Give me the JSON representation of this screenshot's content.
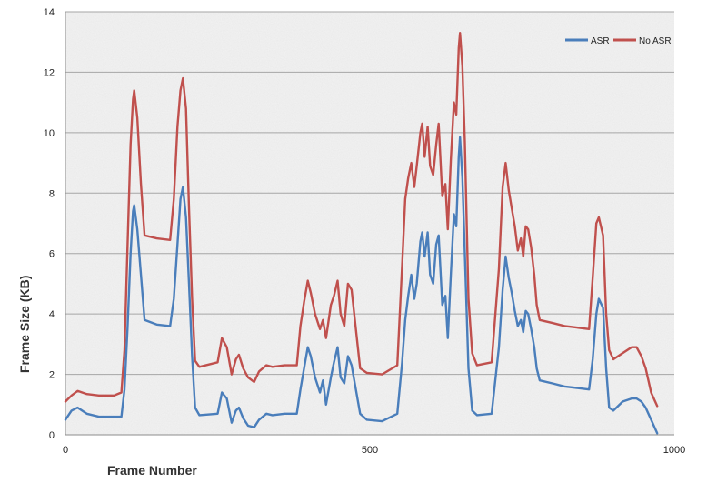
{
  "chart_data": {
    "type": "line",
    "title": "",
    "xlabel": "Frame Number",
    "ylabel": "Frame Size (KB)",
    "xlim": [
      0,
      1000
    ],
    "ylim": [
      0,
      14
    ],
    "xticks": [
      0,
      500,
      1000
    ],
    "xtick_labels": [
      "0",
      "500",
      "1000"
    ],
    "yticks": [
      0,
      2,
      4,
      6,
      8,
      10,
      12,
      14
    ],
    "ytick_labels": [
      "0",
      "2",
      "4",
      "6",
      "8",
      "10",
      "12",
      "14"
    ],
    "grid": "horizontal",
    "legend_position": "top-right",
    "series": [
      {
        "name": "ASR",
        "color": "#4a7ebb",
        "points": [
          [
            0,
            0.5
          ],
          [
            10,
            0.8
          ],
          [
            20,
            0.9
          ],
          [
            35,
            0.7
          ],
          [
            55,
            0.6
          ],
          [
            80,
            0.6
          ],
          [
            92,
            0.6
          ],
          [
            97,
            1.5
          ],
          [
            102,
            3.5
          ],
          [
            107,
            6.0
          ],
          [
            111,
            7.4
          ],
          [
            113,
            7.6
          ],
          [
            118,
            6.8
          ],
          [
            124,
            5.3
          ],
          [
            130,
            3.8
          ],
          [
            150,
            3.65
          ],
          [
            172,
            3.6
          ],
          [
            178,
            4.5
          ],
          [
            184,
            6.3
          ],
          [
            189,
            7.8
          ],
          [
            193,
            8.2
          ],
          [
            198,
            7.2
          ],
          [
            203,
            5.0
          ],
          [
            208,
            2.6
          ],
          [
            213,
            0.9
          ],
          [
            220,
            0.65
          ],
          [
            250,
            0.7
          ],
          [
            257,
            1.4
          ],
          [
            265,
            1.2
          ],
          [
            273,
            0.4
          ],
          [
            280,
            0.8
          ],
          [
            285,
            0.9
          ],
          [
            292,
            0.55
          ],
          [
            300,
            0.3
          ],
          [
            310,
            0.25
          ],
          [
            318,
            0.5
          ],
          [
            330,
            0.7
          ],
          [
            340,
            0.65
          ],
          [
            360,
            0.7
          ],
          [
            380,
            0.7
          ],
          [
            386,
            1.5
          ],
          [
            392,
            2.2
          ],
          [
            398,
            2.9
          ],
          [
            403,
            2.6
          ],
          [
            410,
            1.9
          ],
          [
            418,
            1.4
          ],
          [
            423,
            1.8
          ],
          [
            428,
            1.0
          ],
          [
            436,
            1.9
          ],
          [
            441,
            2.4
          ],
          [
            447,
            2.9
          ],
          [
            452,
            1.9
          ],
          [
            458,
            1.7
          ],
          [
            464,
            2.6
          ],
          [
            470,
            2.3
          ],
          [
            477,
            1.5
          ],
          [
            484,
            0.7
          ],
          [
            495,
            0.5
          ],
          [
            520,
            0.45
          ],
          [
            545,
            0.7
          ],
          [
            553,
            2.4
          ],
          [
            558,
            3.8
          ],
          [
            563,
            4.6
          ],
          [
            568,
            5.3
          ],
          [
            573,
            4.5
          ],
          [
            577,
            5.0
          ],
          [
            583,
            6.4
          ],
          [
            586,
            6.7
          ],
          [
            590,
            5.9
          ],
          [
            595,
            6.7
          ],
          [
            599,
            5.3
          ],
          [
            604,
            5.0
          ],
          [
            609,
            6.3
          ],
          [
            613,
            6.6
          ],
          [
            619,
            4.3
          ],
          [
            624,
            4.6
          ],
          [
            628,
            3.2
          ],
          [
            633,
            5.3
          ],
          [
            638,
            7.3
          ],
          [
            642,
            6.9
          ],
          [
            646,
            9.2
          ],
          [
            648,
            9.85
          ],
          [
            652,
            8.5
          ],
          [
            656,
            6.0
          ],
          [
            662,
            2.2
          ],
          [
            668,
            0.8
          ],
          [
            676,
            0.65
          ],
          [
            700,
            0.7
          ],
          [
            712,
            2.9
          ],
          [
            718,
            4.8
          ],
          [
            723,
            5.9
          ],
          [
            728,
            5.2
          ],
          [
            733,
            4.7
          ],
          [
            738,
            4.1
          ],
          [
            743,
            3.6
          ],
          [
            748,
            3.8
          ],
          [
            752,
            3.4
          ],
          [
            756,
            4.1
          ],
          [
            760,
            4.0
          ],
          [
            765,
            3.5
          ],
          [
            770,
            2.9
          ],
          [
            774,
            2.2
          ],
          [
            779,
            1.8
          ],
          [
            800,
            1.7
          ],
          [
            820,
            1.6
          ],
          [
            840,
            1.55
          ],
          [
            860,
            1.5
          ],
          [
            866,
            2.5
          ],
          [
            872,
            4.0
          ],
          [
            876,
            4.5
          ],
          [
            883,
            4.2
          ],
          [
            888,
            2.2
          ],
          [
            893,
            0.9
          ],
          [
            900,
            0.8
          ],
          [
            915,
            1.1
          ],
          [
            930,
            1.2
          ],
          [
            938,
            1.2
          ],
          [
            946,
            1.1
          ],
          [
            953,
            0.9
          ],
          [
            962,
            0.5
          ],
          [
            972,
            0.05
          ]
        ]
      },
      {
        "name": "No ASR",
        "color": "#c0504d",
        "points": [
          [
            0,
            1.1
          ],
          [
            10,
            1.3
          ],
          [
            20,
            1.45
          ],
          [
            35,
            1.35
          ],
          [
            55,
            1.3
          ],
          [
            80,
            1.3
          ],
          [
            92,
            1.4
          ],
          [
            97,
            2.8
          ],
          [
            102,
            6.2
          ],
          [
            107,
            9.6
          ],
          [
            111,
            11.1
          ],
          [
            113,
            11.4
          ],
          [
            118,
            10.5
          ],
          [
            124,
            8.3
          ],
          [
            130,
            6.6
          ],
          [
            150,
            6.5
          ],
          [
            172,
            6.45
          ],
          [
            178,
            7.8
          ],
          [
            184,
            10.2
          ],
          [
            189,
            11.4
          ],
          [
            193,
            11.8
          ],
          [
            198,
            10.8
          ],
          [
            203,
            7.5
          ],
          [
            208,
            4.5
          ],
          [
            213,
            2.45
          ],
          [
            220,
            2.25
          ],
          [
            250,
            2.4
          ],
          [
            257,
            3.2
          ],
          [
            265,
            2.9
          ],
          [
            273,
            2.0
          ],
          [
            280,
            2.5
          ],
          [
            285,
            2.65
          ],
          [
            292,
            2.2
          ],
          [
            300,
            1.9
          ],
          [
            310,
            1.75
          ],
          [
            318,
            2.1
          ],
          [
            330,
            2.3
          ],
          [
            340,
            2.25
          ],
          [
            360,
            2.3
          ],
          [
            380,
            2.3
          ],
          [
            386,
            3.6
          ],
          [
            392,
            4.4
          ],
          [
            398,
            5.1
          ],
          [
            403,
            4.7
          ],
          [
            410,
            4.0
          ],
          [
            418,
            3.5
          ],
          [
            423,
            3.8
          ],
          [
            428,
            3.2
          ],
          [
            436,
            4.3
          ],
          [
            441,
            4.6
          ],
          [
            447,
            5.1
          ],
          [
            452,
            4.0
          ],
          [
            458,
            3.6
          ],
          [
            464,
            5.0
          ],
          [
            470,
            4.8
          ],
          [
            477,
            3.5
          ],
          [
            484,
            2.2
          ],
          [
            495,
            2.05
          ],
          [
            520,
            2.0
          ],
          [
            545,
            2.3
          ],
          [
            553,
            5.6
          ],
          [
            558,
            7.8
          ],
          [
            563,
            8.5
          ],
          [
            568,
            9.0
          ],
          [
            573,
            8.2
          ],
          [
            577,
            8.9
          ],
          [
            583,
            10.0
          ],
          [
            586,
            10.3
          ],
          [
            590,
            9.2
          ],
          [
            595,
            10.2
          ],
          [
            599,
            8.9
          ],
          [
            604,
            8.6
          ],
          [
            609,
            9.6
          ],
          [
            613,
            10.3
          ],
          [
            619,
            7.9
          ],
          [
            624,
            8.3
          ],
          [
            628,
            6.8
          ],
          [
            633,
            9.1
          ],
          [
            638,
            11.0
          ],
          [
            642,
            10.6
          ],
          [
            646,
            12.8
          ],
          [
            648,
            13.3
          ],
          [
            652,
            12.2
          ],
          [
            656,
            9.7
          ],
          [
            662,
            4.5
          ],
          [
            668,
            2.7
          ],
          [
            676,
            2.3
          ],
          [
            700,
            2.4
          ],
          [
            712,
            5.5
          ],
          [
            718,
            8.2
          ],
          [
            723,
            9.0
          ],
          [
            728,
            8.1
          ],
          [
            733,
            7.5
          ],
          [
            738,
            6.9
          ],
          [
            743,
            6.1
          ],
          [
            748,
            6.5
          ],
          [
            752,
            5.9
          ],
          [
            756,
            6.9
          ],
          [
            760,
            6.8
          ],
          [
            765,
            6.2
          ],
          [
            770,
            5.3
          ],
          [
            774,
            4.3
          ],
          [
            779,
            3.8
          ],
          [
            800,
            3.7
          ],
          [
            820,
            3.6
          ],
          [
            840,
            3.55
          ],
          [
            860,
            3.5
          ],
          [
            866,
            5.2
          ],
          [
            872,
            7.0
          ],
          [
            876,
            7.2
          ],
          [
            883,
            6.6
          ],
          [
            888,
            4.0
          ],
          [
            893,
            2.8
          ],
          [
            900,
            2.5
          ],
          [
            915,
            2.7
          ],
          [
            930,
            2.9
          ],
          [
            938,
            2.9
          ],
          [
            946,
            2.6
          ],
          [
            953,
            2.2
          ],
          [
            962,
            1.4
          ],
          [
            972,
            0.95
          ]
        ]
      }
    ]
  }
}
